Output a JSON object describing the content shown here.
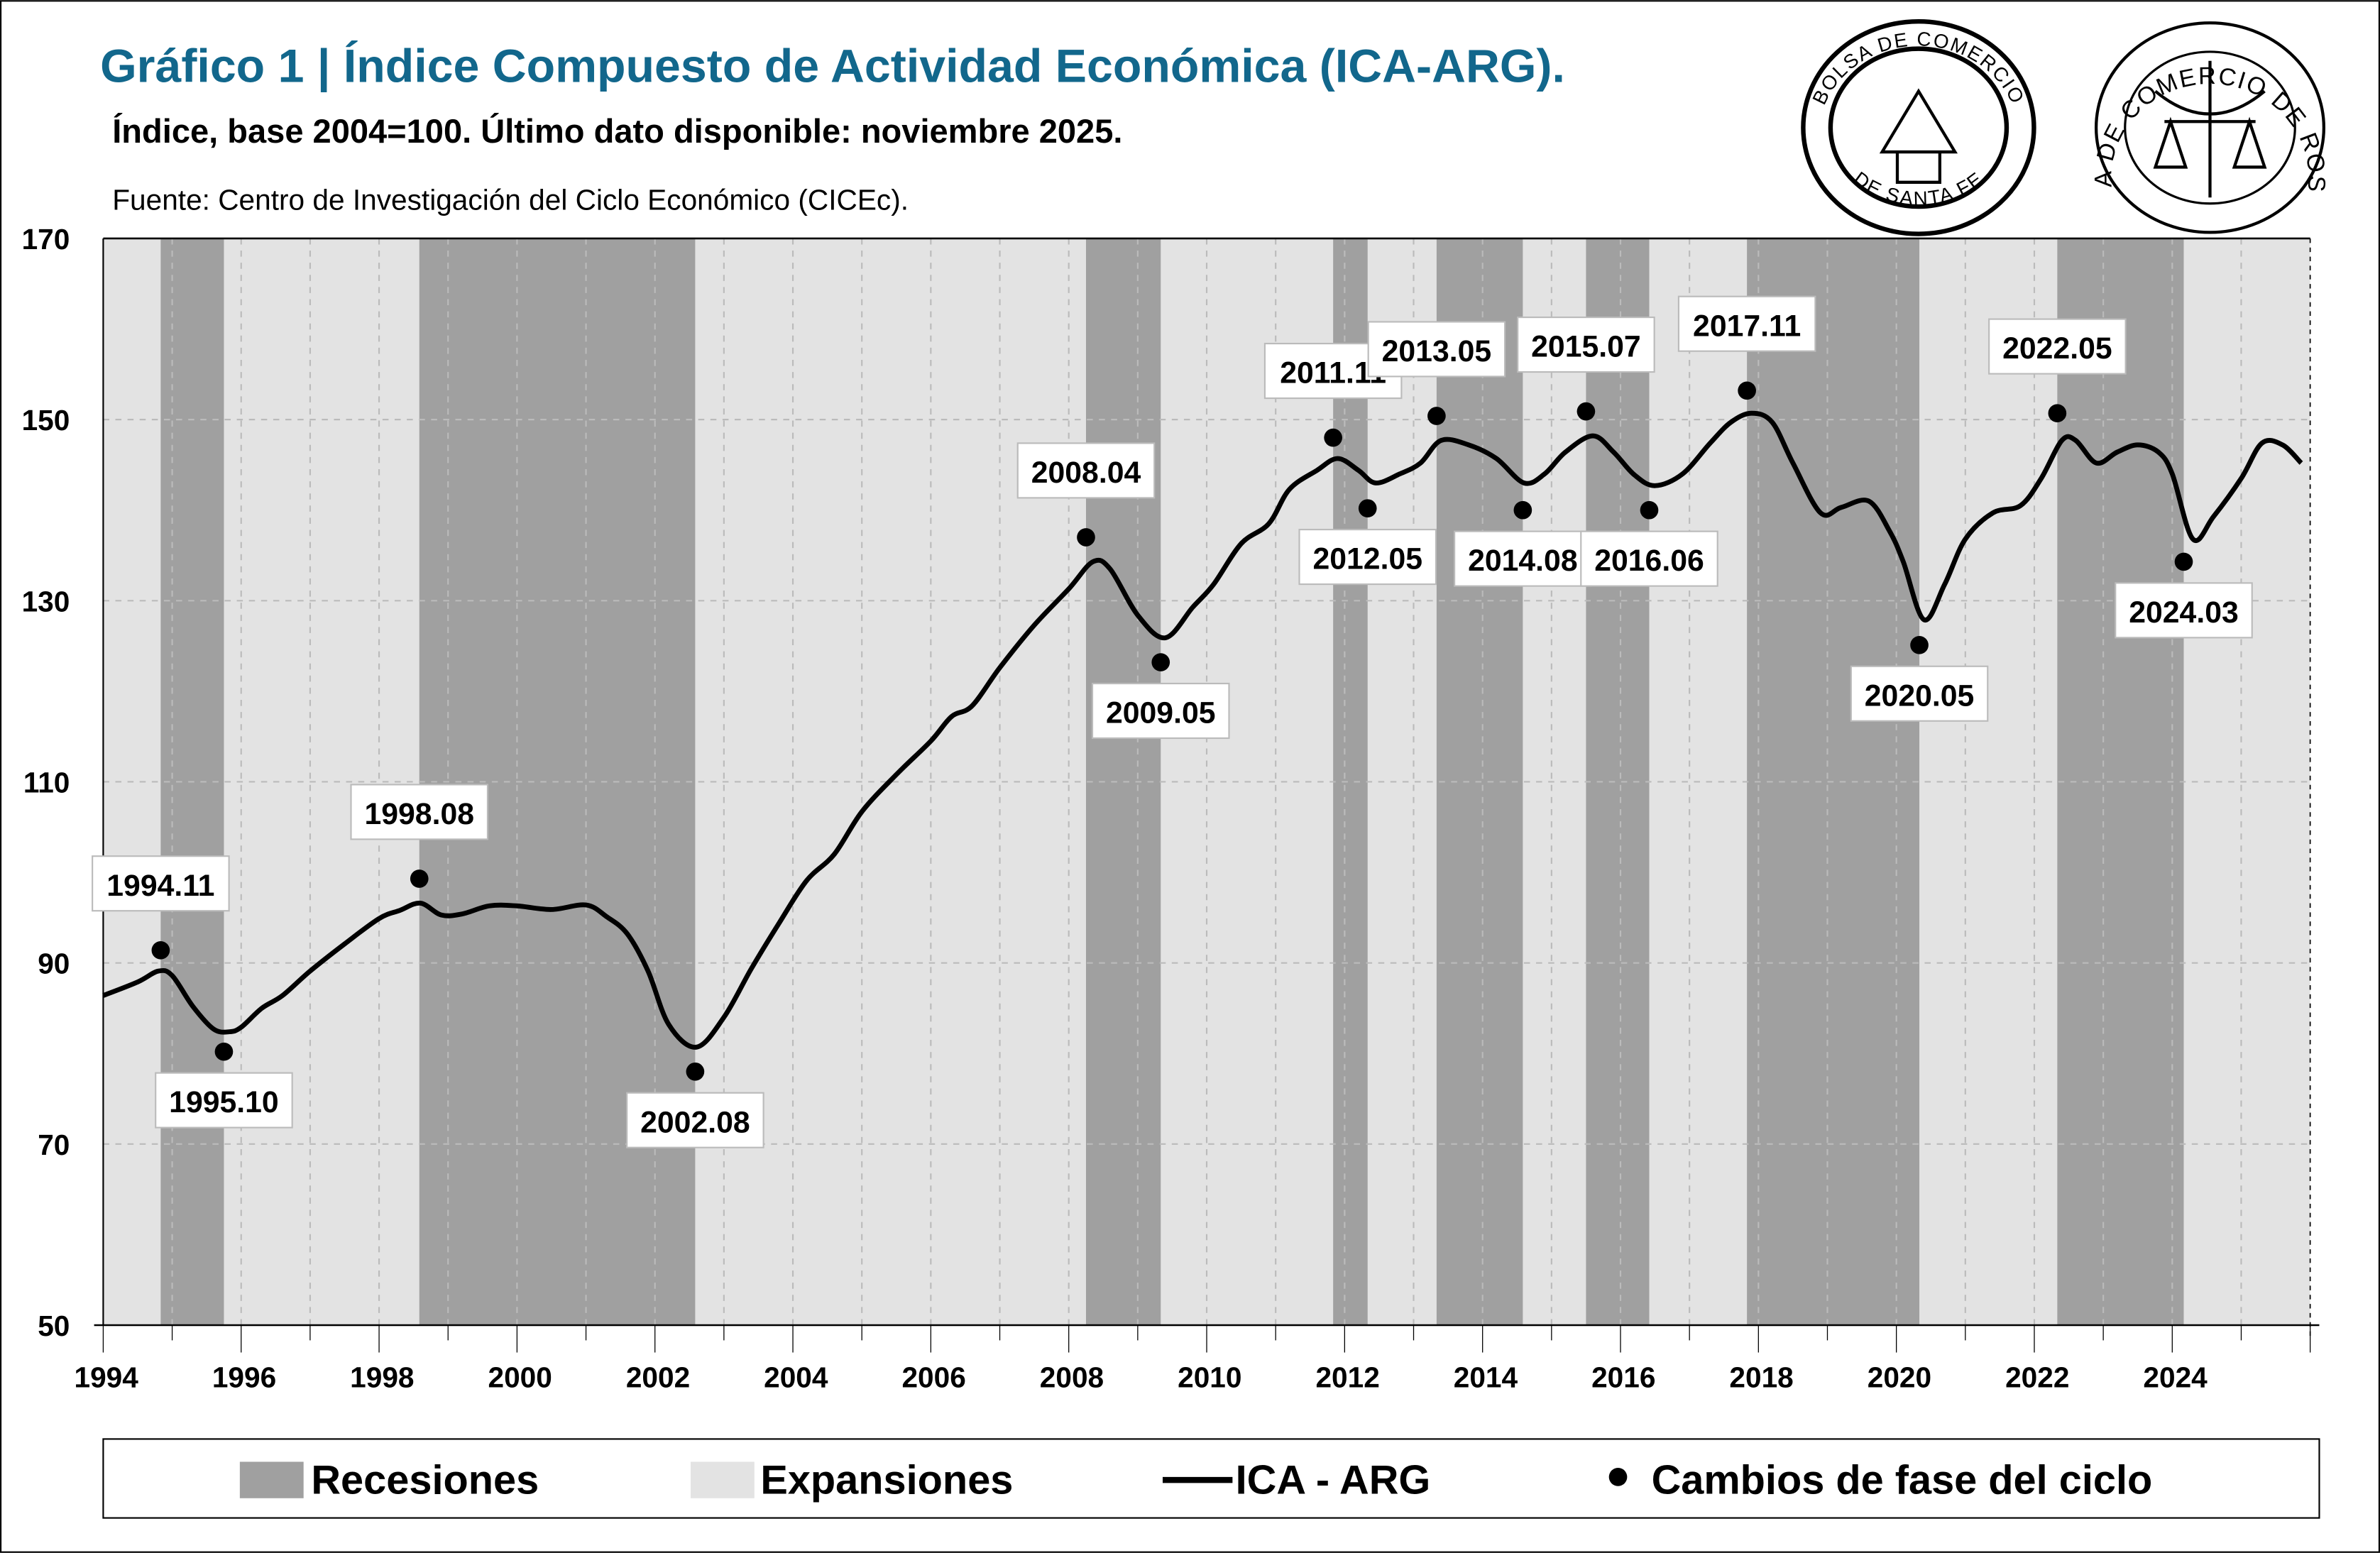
{
  "header": {
    "title": "Gráfico 1 | Índice Compuesto de Actividad Económica (ICA-ARG).",
    "subtitle": "Índice, base 2004=100. Último dato disponible: noviembre 2025.",
    "source": "Fuente: Centro de Investigación del Ciclo Económico (CICEc).",
    "title_color": "#12678c"
  },
  "logos": [
    {
      "name": "bolsa-comercio-santa-fe-logo",
      "text_top": "BOLSA DE COMERCIO",
      "text_bottom": "DE SANTA FE"
    },
    {
      "name": "bolsa-comercio-rosario-logo",
      "text_top": "BOLSA DE COMERCIO DE ROSARIO"
    }
  ],
  "colors": {
    "recession": "#a0a0a0",
    "expansion": "#e3e3e3",
    "line": "#000000",
    "dot": "#000000"
  },
  "legend": {
    "recession": "Recesiones",
    "expansion": "Expansiones",
    "line": "ICA - ARG",
    "dots": "Cambios de fase del ciclo"
  },
  "chart_data": {
    "type": "line",
    "ylim": [
      50,
      170
    ],
    "yticks": [
      "50",
      "70",
      "90",
      "110",
      "130",
      "150",
      "170"
    ],
    "xlim": [
      1994,
      2026
    ],
    "xticks": [
      "1994",
      "1996",
      "1998",
      "2000",
      "2002",
      "2004",
      "2006",
      "2008",
      "2010",
      "2012",
      "2014",
      "2016",
      "2018",
      "2020",
      "2022",
      "2024"
    ],
    "grid": true,
    "legend_position": "bottom",
    "recessions": [
      [
        "1994.11",
        "1995.10"
      ],
      [
        "1998.08",
        "2002.08"
      ],
      [
        "2008.04",
        "2009.05"
      ],
      [
        "2011.11",
        "2012.05"
      ],
      [
        "2013.05",
        "2014.08"
      ],
      [
        "2015.07",
        "2016.06"
      ],
      [
        "2017.11",
        "2020.05"
      ],
      [
        "2022.05",
        "2024.03"
      ]
    ],
    "series": [
      {
        "name": "ICA - ARG",
        "x": [
          1994.0,
          1994.5,
          1994.8,
          1995.0,
          1995.3,
          1995.6,
          1995.83,
          1996.0,
          1996.3,
          1996.6,
          1997.0,
          1997.5,
          1998.0,
          1998.3,
          1998.6,
          1998.9,
          1999.2,
          1999.6,
          2000.0,
          2000.5,
          2001.0,
          2001.3,
          2001.6,
          2001.9,
          2002.2,
          2002.6,
          2003.0,
          2003.4,
          2003.8,
          2004.2,
          2004.6,
          2005.0,
          2005.5,
          2006.0,
          2006.3,
          2006.6,
          2007.0,
          2007.5,
          2008.0,
          2008.35,
          2008.6,
          2009.0,
          2009.4,
          2009.8,
          2010.1,
          2010.5,
          2010.9,
          2011.2,
          2011.6,
          2011.9,
          2012.2,
          2012.45,
          2012.8,
          2013.1,
          2013.4,
          2013.8,
          2014.2,
          2014.6,
          2014.9,
          2015.2,
          2015.6,
          2015.9,
          2016.2,
          2016.5,
          2016.9,
          2017.3,
          2017.6,
          2017.9,
          2018.2,
          2018.5,
          2018.9,
          2019.2,
          2019.6,
          2019.9,
          2020.1,
          2020.4,
          2020.7,
          2021.0,
          2021.4,
          2021.8,
          2022.1,
          2022.4,
          2022.6,
          2022.9,
          2023.2,
          2023.5,
          2023.8,
          2024.0,
          2024.3,
          2024.6,
          2025.0,
          2025.3,
          2025.6,
          2025.87
        ],
        "values": [
          86.4,
          87.9,
          89.1,
          88.6,
          85.2,
          82.7,
          82.4,
          82.9,
          85.0,
          86.4,
          89.1,
          92.1,
          94.9,
          95.8,
          96.6,
          95.3,
          95.4,
          96.3,
          96.3,
          95.9,
          96.4,
          95.1,
          93.2,
          89.1,
          83.2,
          80.7,
          84.0,
          89.4,
          94.4,
          99.1,
          102.0,
          106.7,
          110.8,
          114.5,
          117.2,
          118.4,
          122.6,
          127.3,
          131.3,
          134.3,
          133.5,
          128.4,
          125.9,
          129.3,
          131.8,
          136.3,
          138.5,
          142.3,
          144.4,
          145.7,
          144.4,
          143.0,
          144.0,
          145.2,
          147.7,
          147.2,
          145.7,
          143.0,
          144.0,
          146.4,
          148.2,
          146.4,
          143.9,
          142.7,
          144.0,
          147.4,
          149.7,
          150.7,
          149.7,
          145.2,
          139.7,
          140.3,
          141.0,
          137.7,
          134.3,
          127.9,
          131.8,
          136.8,
          139.7,
          140.5,
          143.5,
          147.7,
          147.7,
          145.2,
          146.4,
          147.2,
          146.4,
          144.0,
          136.8,
          139.3,
          143.5,
          147.4,
          147.2,
          145.2
        ]
      }
    ],
    "phase_changes": [
      {
        "label": "1994.11",
        "type": "peak",
        "value": 91.4
      },
      {
        "label": "1995.10",
        "type": "trough",
        "value": 80.2
      },
      {
        "label": "1998.08",
        "type": "peak",
        "value": 99.3
      },
      {
        "label": "2002.08",
        "type": "trough",
        "value": 78.0
      },
      {
        "label": "2008.04",
        "type": "peak",
        "value": 137.0
      },
      {
        "label": "2009.05",
        "type": "trough",
        "value": 123.2
      },
      {
        "label": "2011.11",
        "type": "peak",
        "value": 148.0
      },
      {
        "label": "2012.05",
        "type": "trough",
        "value": 140.2
      },
      {
        "label": "2013.05",
        "type": "peak",
        "value": 150.4
      },
      {
        "label": "2014.08",
        "type": "trough",
        "value": 140.0
      },
      {
        "label": "2015.07",
        "type": "peak",
        "value": 150.9
      },
      {
        "label": "2016.06",
        "type": "trough",
        "value": 140.0
      },
      {
        "label": "2017.11",
        "type": "peak",
        "value": 153.2
      },
      {
        "label": "2020.05",
        "type": "trough",
        "value": 125.1
      },
      {
        "label": "2022.05",
        "type": "peak",
        "value": 150.7
      },
      {
        "label": "2024.03",
        "type": "trough",
        "value": 134.3
      }
    ]
  }
}
